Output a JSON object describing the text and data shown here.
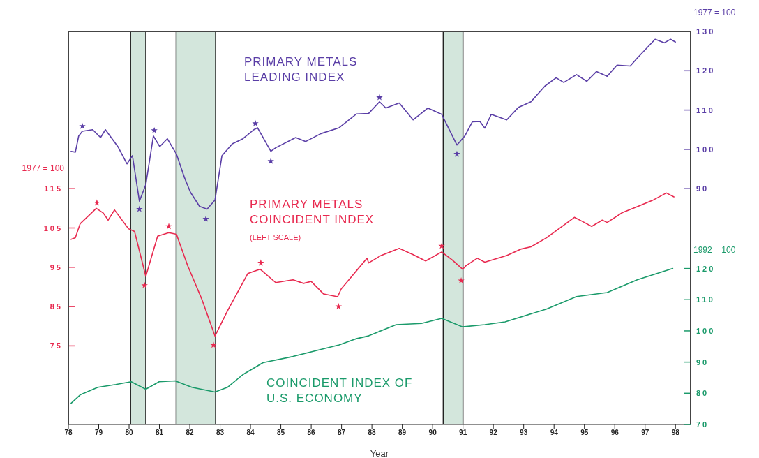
{
  "chart_data": {
    "type": "line",
    "xlabel": "Year",
    "ylabel": "1977 = 100",
    "y2label": "1977 = 100",
    "y3label": "1992 = 100",
    "xlim": [
      1978,
      1998.5
    ],
    "xticks": [
      {
        "value": 1978,
        "label": "78"
      },
      {
        "value": 1979,
        "label": "79"
      },
      {
        "value": 1980,
        "label": "80"
      },
      {
        "value": 1981,
        "label": "81"
      },
      {
        "value": 1982,
        "label": "82"
      },
      {
        "value": 1983,
        "label": "83"
      },
      {
        "value": 1984,
        "label": "84"
      },
      {
        "value": 1985,
        "label": "85"
      },
      {
        "value": 1986,
        "label": "86"
      },
      {
        "value": 1987,
        "label": "87"
      },
      {
        "value": 1988,
        "label": "88"
      },
      {
        "value": 1989,
        "label": "89"
      },
      {
        "value": 1990,
        "label": "90"
      },
      {
        "value": 1991,
        "label": "91"
      },
      {
        "value": 1992,
        "label": "92"
      },
      {
        "value": 1993,
        "label": "93"
      },
      {
        "value": 1994,
        "label": "94"
      },
      {
        "value": 1995,
        "label": "95"
      },
      {
        "value": 1996,
        "label": "96"
      },
      {
        "value": 1997,
        "label": "97"
      },
      {
        "value": 1998,
        "label": "98"
      }
    ],
    "ylim": [
      55,
      155
    ],
    "yticks": [
      75,
      85,
      95,
      105,
      115
    ],
    "y2lim": [
      30,
      130
    ],
    "y2ticks": [
      90,
      100,
      110,
      120,
      130
    ],
    "y3lim": [
      70,
      196
    ],
    "y3ticks": [
      70,
      80,
      90,
      100,
      110,
      120
    ],
    "marker": "none",
    "line_style": "solid",
    "annotations": [
      "(LEFT SCALE)"
    ],
    "bands": [
      {
        "axis": "x",
        "from": 1980.05,
        "to": 1980.55,
        "color": "#d3e6dc"
      },
      {
        "axis": "x",
        "from": 1981.55,
        "to": 1982.85,
        "color": "#d3e6dc"
      },
      {
        "axis": "x",
        "from": 1990.35,
        "to": 1991.0,
        "color": "#d3e6dc"
      }
    ],
    "series": [
      {
        "name": "PRIMARY METALS\nLEADING INDEX",
        "color": "#5a3ea6",
        "axis": "y2",
        "x": [
          1978.09,
          1978.23,
          1978.34,
          1978.46,
          1978.8,
          1979.06,
          1979.22,
          1979.63,
          1979.93,
          1980.11,
          1980.34,
          1980.55,
          1980.8,
          1981.01,
          1981.26,
          1981.56,
          1981.82,
          1982.02,
          1982.32,
          1982.57,
          1982.83,
          1983.06,
          1983.4,
          1983.75,
          1984.11,
          1984.23,
          1984.67,
          1984.83,
          1985.49,
          1985.82,
          1986.32,
          1986.92,
          1987.49,
          1987.89,
          1988.25,
          1988.46,
          1988.9,
          1989.36,
          1989.84,
          1990.3,
          1990.8,
          1991.06,
          1991.31,
          1991.56,
          1991.72,
          1991.93,
          1992.44,
          1992.83,
          1993.24,
          1993.7,
          1994.07,
          1994.32,
          1994.74,
          1995.08,
          1995.4,
          1995.75,
          1996.07,
          1996.51,
          1996.74,
          1997.33,
          1997.63,
          1997.84,
          1998.0
        ],
        "values": [
          99.5,
          99.3,
          103.4,
          104.6,
          105,
          103,
          105,
          100.7,
          96.3,
          98.4,
          86.8,
          91,
          103.4,
          100.7,
          102.7,
          98.8,
          92.9,
          89.1,
          85.5,
          84.8,
          87.1,
          98.4,
          101.4,
          102.7,
          105,
          105.5,
          99.5,
          100.4,
          103,
          102,
          104,
          105.5,
          109,
          109.1,
          112.1,
          110.5,
          111.8,
          107.5,
          110.5,
          108.9,
          101.1,
          103.4,
          107,
          107.1,
          105.4,
          108.9,
          107.5,
          110.7,
          112.1,
          116.1,
          118.2,
          117,
          119,
          117.3,
          119.8,
          118.6,
          121.4,
          121.2,
          123.2,
          128,
          127.1,
          128,
          127.3
        ]
      },
      {
        "name": "PRIMARY METALS\nCOINCIDENT INDEX",
        "color": "#e8294f",
        "x": [
          1978.09,
          1978.23,
          1978.39,
          1978.92,
          1979.15,
          1979.31,
          1979.52,
          1979.98,
          1980.18,
          1980.55,
          1980.94,
          1981.31,
          1981.56,
          1981.93,
          1982.39,
          1982.83,
          1983.24,
          1983.91,
          1984.32,
          1984.83,
          1985.4,
          1985.75,
          1986.0,
          1986.41,
          1986.87,
          1986.99,
          1987.49,
          1987.84,
          1987.89,
          1988.3,
          1988.9,
          1989.36,
          1989.77,
          1990.3,
          1990.64,
          1990.99,
          1991.1,
          1991.47,
          1991.72,
          1992.44,
          1992.9,
          1993.24,
          1993.75,
          1994.16,
          1994.67,
          1994.9,
          1995.24,
          1995.59,
          1995.75,
          1996.25,
          1996.74,
          1997.24,
          1997.7,
          1997.95
        ],
        "values": [
          102.1,
          102.5,
          106.1,
          110,
          108.8,
          107,
          109.6,
          104.8,
          104.1,
          92.7,
          102.9,
          103.8,
          103.4,
          95.4,
          87,
          77.5,
          83.9,
          93.4,
          94.5,
          91.1,
          91.8,
          90.9,
          91.4,
          88.2,
          87.5,
          89.5,
          94.1,
          97.3,
          96.1,
          98,
          99.8,
          98.2,
          96.6,
          98.9,
          96.9,
          94.5,
          95.4,
          97.3,
          96.3,
          98,
          99.6,
          100.2,
          102.5,
          104.8,
          107.7,
          106.8,
          105.4,
          107,
          106.4,
          108.9,
          110.4,
          112,
          113.9,
          112.9
        ]
      },
      {
        "name": "COINCIDENT INDEX OF\nU.S. ECONOMY",
        "color": "#1a9a6a",
        "axis": "y3",
        "x": [
          1978.09,
          1978.39,
          1978.97,
          1979.56,
          1980.07,
          1980.55,
          1980.99,
          1981.52,
          1982.07,
          1982.83,
          1983.24,
          1983.75,
          1984.41,
          1985.4,
          1986.25,
          1986.92,
          1987.49,
          1987.89,
          1988.8,
          1989.63,
          1990.3,
          1990.99,
          1991.72,
          1992.39,
          1993.75,
          1994.74,
          1995.75,
          1996.74,
          1997.91
        ],
        "values": [
          76.8,
          79.5,
          81.9,
          82.8,
          83.7,
          81.3,
          83.7,
          84,
          81.9,
          80.4,
          81.9,
          86,
          89.8,
          91.8,
          93.9,
          95.5,
          97.5,
          98.4,
          102,
          102.4,
          104,
          101.3,
          102,
          102.9,
          107,
          111,
          112.3,
          116.4,
          120
        ]
      },
      {
        "type": "scatter",
        "color": "#5a3ea6",
        "axis": "y2",
        "marker": "star",
        "x": [
          1978.46,
          1980.34,
          1980.83,
          1982.53,
          1984.16,
          1984.67,
          1988.25,
          1990.8
        ],
        "values": [
          105.9,
          84.8,
          104.8,
          82.3,
          106.6,
          97,
          113.2,
          98.8
        ]
      },
      {
        "type": "scatter",
        "color": "#e8294f",
        "marker": "star",
        "x": [
          1978.94,
          1980.51,
          1981.31,
          1982.78,
          1984.34,
          1986.9,
          1990.3,
          1990.94
        ],
        "values": [
          111.4,
          90.4,
          105.4,
          75.2,
          96.1,
          85,
          100.4,
          91.6
        ]
      }
    ]
  }
}
